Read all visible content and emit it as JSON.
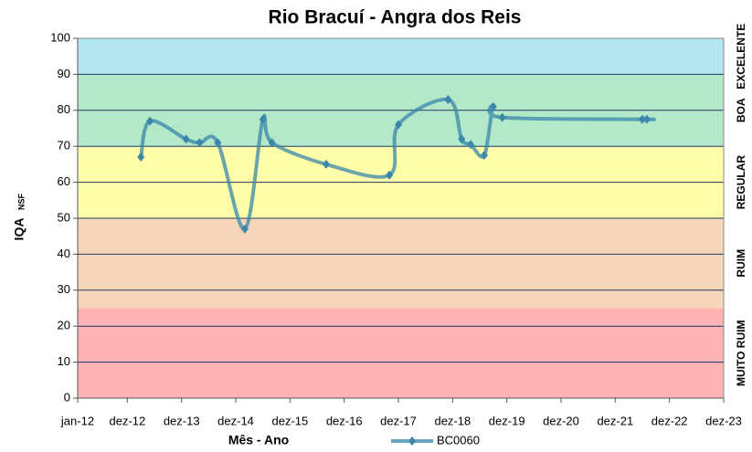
{
  "chart_data": {
    "type": "line",
    "title": "Rio Bracuí - Angra dos Reis",
    "x_label": "Mês - Ano",
    "y_label": "IQA",
    "y_label_sub": "NSF",
    "xlim": [
      "2012-01",
      "2023-12"
    ],
    "xticks": [
      {
        "value": "2012-01",
        "label": "jan-12"
      },
      {
        "value": "2012-12",
        "label": "dez-12"
      },
      {
        "value": "2013-12",
        "label": "dez-13"
      },
      {
        "value": "2014-12",
        "label": "dez-14"
      },
      {
        "value": "2015-12",
        "label": "dez-15"
      },
      {
        "value": "2016-12",
        "label": "dez-16"
      },
      {
        "value": "2017-12",
        "label": "dez-17"
      },
      {
        "value": "2018-12",
        "label": "dez-18"
      },
      {
        "value": "2019-12",
        "label": "dez-19"
      },
      {
        "value": "2020-12",
        "label": "dez-20"
      },
      {
        "value": "2021-12",
        "label": "dez-21"
      },
      {
        "value": "2022-12",
        "label": "dez-22"
      },
      {
        "value": "2023-12",
        "label": "dez-23"
      }
    ],
    "ylim": [
      0,
      100
    ],
    "yticks": [
      0,
      10,
      20,
      30,
      40,
      50,
      60,
      70,
      80,
      90,
      100
    ],
    "bands": [
      {
        "from": 0,
        "to": 25,
        "label": "MUITO RUIM",
        "color": "#ffb3b3"
      },
      {
        "from": 25,
        "to": 50,
        "label": "RUIM",
        "color": "#f6d6b8"
      },
      {
        "from": 50,
        "to": 70,
        "label": "REGULAR",
        "color": "#ffffaa"
      },
      {
        "from": 70,
        "to": 90,
        "label": "BOA",
        "color": "#b3e8c9"
      },
      {
        "from": 90,
        "to": 100,
        "label": "EXCELENTE",
        "color": "#b3e5f3"
      }
    ],
    "x": [
      "2013-03",
      "2013-05",
      "2014-01",
      "2014-04",
      "2014-08",
      "2015-02",
      "2015-06",
      "2015-08",
      "2016-08",
      "2017-10",
      "2017-12",
      "2018-11",
      "2019-02",
      "2019-04",
      "2019-07",
      "2019-09",
      "2019-11",
      "2022-06",
      "2022-07"
    ],
    "series": [
      {
        "name": "BC0060",
        "color": "#3a87aa",
        "values": [
          67,
          77,
          72,
          71,
          71,
          47,
          77.5,
          71,
          65,
          62,
          76,
          83,
          72,
          70.5,
          67.5,
          81,
          78,
          77.5,
          77.5
        ]
      }
    ]
  }
}
